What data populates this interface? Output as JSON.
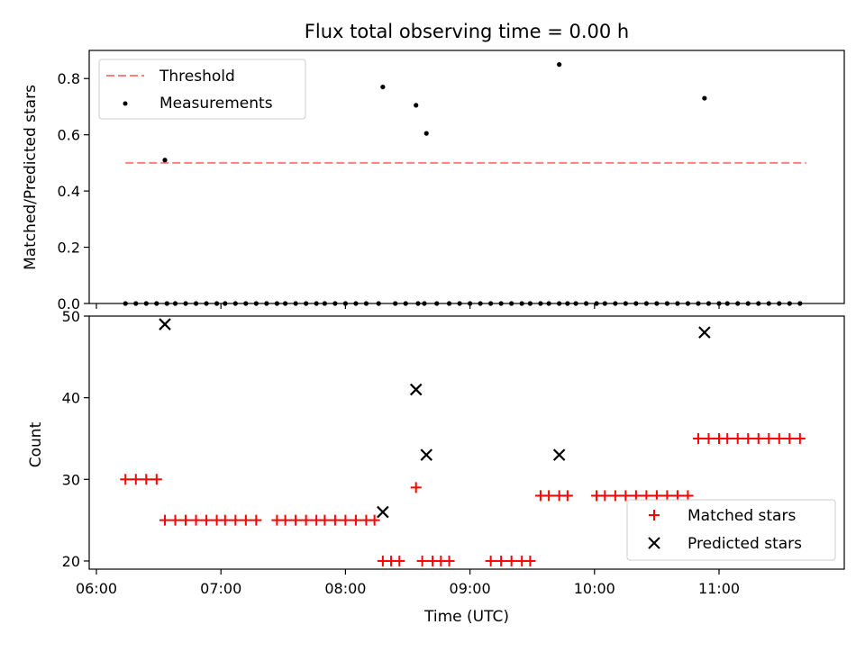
{
  "chart_data": [
    {
      "type": "scatter",
      "title": "Flux total observing time = 0.00 h",
      "ylabel": "Matched/Predicted stars",
      "ylim": [
        0,
        0.9
      ],
      "yticks": [
        0.0,
        0.2,
        0.4,
        0.6,
        0.8
      ],
      "ytick_labels": [
        "0.0",
        "0.2",
        "0.4",
        "0.6",
        "0.8"
      ],
      "legend_position": "top-left",
      "threshold": {
        "name": "Threshold",
        "x": [
          "06:14",
          "11:42"
        ],
        "y": 0.5,
        "color": "#ff7f7f"
      },
      "series": [
        {
          "name": "Measurements",
          "color": "#000000",
          "x": [
            "06:14",
            "06:19",
            "06:24",
            "06:29",
            "06:34",
            "06:38",
            "06:43",
            "06:48",
            "06:53",
            "06:58",
            "07:02",
            "07:07",
            "07:12",
            "07:17",
            "07:22",
            "07:27",
            "07:31",
            "07:36",
            "07:41",
            "07:46",
            "07:50",
            "07:55",
            "08:00",
            "08:05",
            "08:10",
            "08:16",
            "08:24",
            "08:29",
            "08:35",
            "08:38",
            "08:44",
            "08:50",
            "08:55",
            "09:00",
            "09:05",
            "09:10",
            "09:15",
            "09:20",
            "09:25",
            "09:29",
            "09:34",
            "09:38",
            "09:43",
            "09:47",
            "09:51",
            "09:56",
            "10:01",
            "10:05",
            "10:10",
            "10:15",
            "10:20",
            "10:25",
            "10:30",
            "10:35",
            "10:40",
            "10:45",
            "10:50",
            "10:55",
            "11:00",
            "11:04",
            "11:09",
            "11:14",
            "11:19",
            "11:24",
            "11:29",
            "11:34",
            "11:39"
          ],
          "y": [
            0,
            0,
            0,
            0,
            0,
            0,
            0,
            0,
            0,
            0,
            0,
            0,
            0,
            0,
            0,
            0,
            0,
            0,
            0,
            0,
            0,
            0,
            0,
            0,
            0,
            0,
            0,
            0,
            0,
            0,
            0,
            0,
            0,
            0,
            0,
            0,
            0,
            0,
            0,
            0,
            0,
            0,
            0,
            0,
            0,
            0,
            0,
            0,
            0,
            0,
            0,
            0,
            0,
            0,
            0,
            0,
            0,
            0,
            0,
            0,
            0,
            0,
            0,
            0,
            0,
            0,
            0
          ]
        }
      ],
      "highlighted_points": {
        "x": [
          "06:33",
          "08:18",
          "08:34",
          "08:39",
          "09:43",
          "10:53"
        ],
        "y": [
          0.51,
          0.77,
          0.705,
          0.605,
          0.85,
          0.73
        ]
      }
    },
    {
      "type": "scatter",
      "xlabel": "Time (UTC)",
      "ylabel": "Count",
      "ylim": [
        19,
        50
      ],
      "xlim": [
        "06:00",
        "11:58"
      ],
      "xticks": [
        "06:00",
        "07:00",
        "08:00",
        "09:00",
        "10:00",
        "11:00"
      ],
      "xtick_labels": [
        "06:00",
        "07:00",
        "08:00",
        "09:00",
        "10:00",
        "11:00"
      ],
      "yticks": [
        20,
        30,
        40,
        50
      ],
      "ytick_labels": [
        "20",
        "30",
        "40",
        "50"
      ],
      "legend_position": "bottom-right",
      "series": [
        {
          "name": "Matched stars",
          "color": "#ff0000",
          "marker": "plus",
          "x": [
            "06:14",
            "06:19",
            "06:24",
            "06:29",
            "06:33",
            "06:38",
            "06:43",
            "06:48",
            "06:53",
            "06:58",
            "07:02",
            "07:07",
            "07:12",
            "07:17",
            "07:27",
            "07:31",
            "07:36",
            "07:41",
            "07:46",
            "07:50",
            "07:55",
            "08:00",
            "08:05",
            "08:10",
            "08:14",
            "08:18",
            "08:22",
            "08:26",
            "08:34",
            "08:37",
            "08:42",
            "08:46",
            "08:50",
            "09:10",
            "09:15",
            "09:20",
            "09:25",
            "09:29",
            "09:34",
            "09:38",
            "09:43",
            "09:47",
            "10:01",
            "10:05",
            "10:10",
            "10:15",
            "10:20",
            "10:25",
            "10:30",
            "10:35",
            "10:40",
            "10:45",
            "10:50",
            "10:55",
            "11:00",
            "11:04",
            "11:09",
            "11:14",
            "11:19",
            "11:24",
            "11:29",
            "11:34",
            "11:39"
          ],
          "y": [
            30,
            30,
            30,
            30,
            25,
            25,
            25,
            25,
            25,
            25,
            25,
            25,
            25,
            25,
            25,
            25,
            25,
            25,
            25,
            25,
            25,
            25,
            25,
            25,
            25,
            20,
            20,
            20,
            29,
            20,
            20,
            20,
            20,
            20,
            20,
            20,
            20,
            20,
            28,
            28,
            28,
            28,
            28,
            28,
            28,
            28,
            28,
            28,
            28,
            28,
            28,
            28,
            35,
            35,
            35,
            35,
            35,
            35,
            35,
            35,
            35,
            35,
            35
          ]
        },
        {
          "name": "Predicted stars",
          "color": "#000000",
          "marker": "x",
          "x": [
            "06:33",
            "08:18",
            "08:34",
            "08:39",
            "09:43",
            "10:53"
          ],
          "y": [
            49,
            26,
            41,
            33,
            33,
            48
          ]
        }
      ]
    }
  ]
}
